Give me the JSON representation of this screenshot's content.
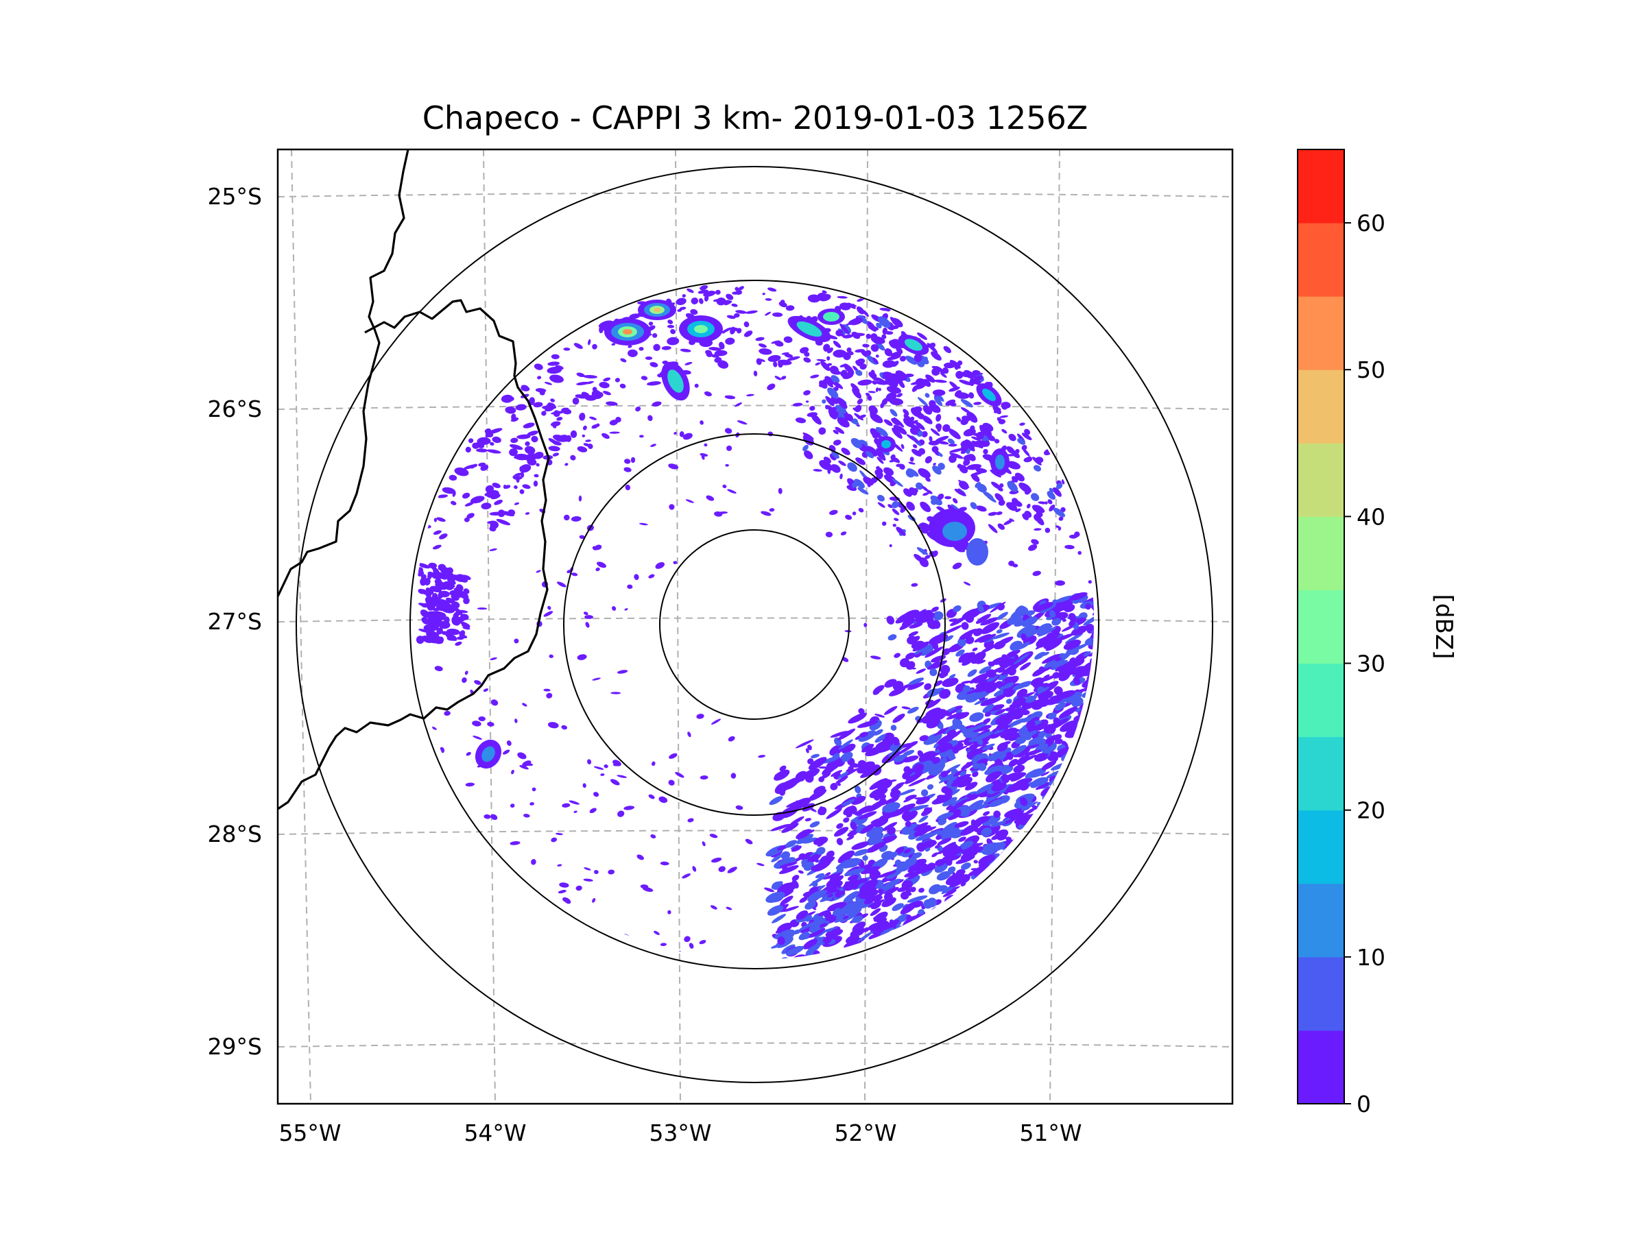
{
  "map": {
    "title": "Chapeco - CAPPI 3 km- 2019-01-03 1256Z",
    "radar_center": {
      "lon": -52.6,
      "lat": -27.02
    },
    "lon_ticks": [
      "55°W",
      "54°W",
      "53°W",
      "52°W",
      "51°W"
    ],
    "lat_ticks": [
      "25°S",
      "26°S",
      "27°S",
      "28°S",
      "29°S"
    ],
    "range_rings": [
      "ring-1",
      "ring-2",
      "ring-3",
      "ring-4"
    ],
    "borders": [
      "argentina-brazil-border-north",
      "argentina-brazil-border-south",
      "parana-santa-catarina-border"
    ]
  },
  "colorbar": {
    "label": "[dBZ]",
    "tick_labels": [
      "0",
      "10",
      "20",
      "30",
      "40",
      "50",
      "60"
    ],
    "bins": [
      0,
      5,
      10,
      15,
      20,
      25,
      30,
      35,
      40,
      45,
      50,
      55,
      60,
      65
    ],
    "colors": [
      "#6b1cff",
      "#4a5cf2",
      "#2f8ee8",
      "#0cbce4",
      "#2ad6cf",
      "#4ef0ba",
      "#78fba2",
      "#9cf58a",
      "#c6de7a",
      "#f0c06a",
      "#ff9050",
      "#ff5a32",
      "#ff2216"
    ]
  },
  "echoes": {
    "description": "reflectivity cells",
    "high_cells": [
      {
        "name": "cell-north-1",
        "dbz": 52
      },
      {
        "name": "cell-north-2",
        "dbz": 48
      },
      {
        "name": "cell-north-3",
        "dbz": 35
      },
      {
        "name": "cell-north-4",
        "dbz": 30
      },
      {
        "name": "cell-north-5",
        "dbz": 28
      },
      {
        "name": "cell-north-6",
        "dbz": 25
      },
      {
        "name": "cell-east-1",
        "dbz": 22
      },
      {
        "name": "cell-east-2",
        "dbz": 18
      },
      {
        "name": "cell-west-1",
        "dbz": 20
      }
    ]
  }
}
